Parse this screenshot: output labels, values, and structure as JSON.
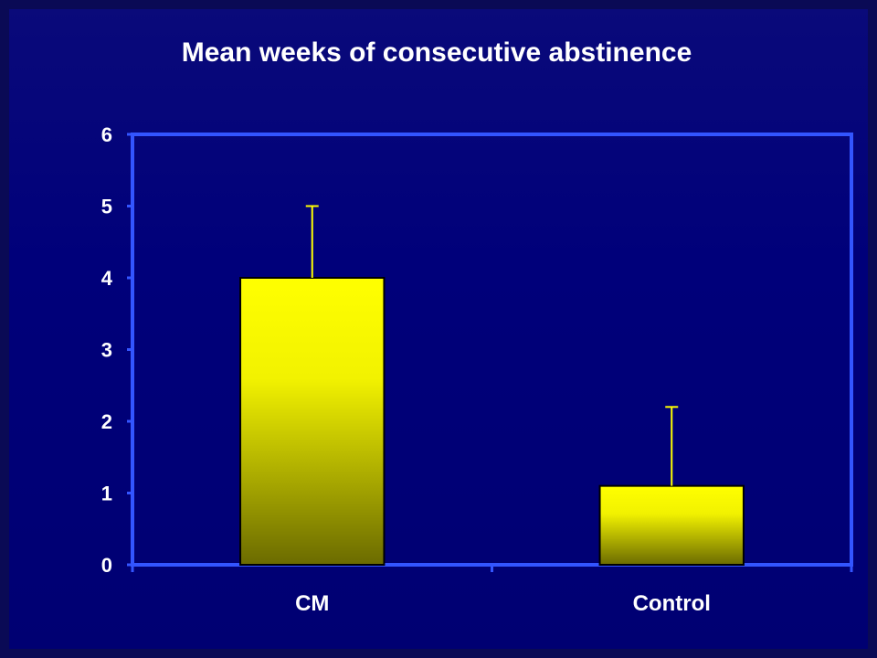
{
  "chart_data": {
    "type": "bar",
    "title": "Mean weeks of consecutive abstinence",
    "xlabel": "",
    "ylabel": "",
    "categories": [
      "CM",
      "Control"
    ],
    "values": [
      4.0,
      1.1
    ],
    "error_upper": [
      5.0,
      2.2
    ],
    "ylim": [
      0,
      6
    ],
    "yticks": [
      "0",
      "1",
      "2",
      "3",
      "4",
      "5",
      "6"
    ],
    "grid": false,
    "legend": "none",
    "colors": {
      "background": "#00007a",
      "plot_border": "#3355ff",
      "bar_top": "#ffff00",
      "bar_bottom": "#6b6b00",
      "error_bar": "#ffff00",
      "text": "#ffffff"
    }
  }
}
